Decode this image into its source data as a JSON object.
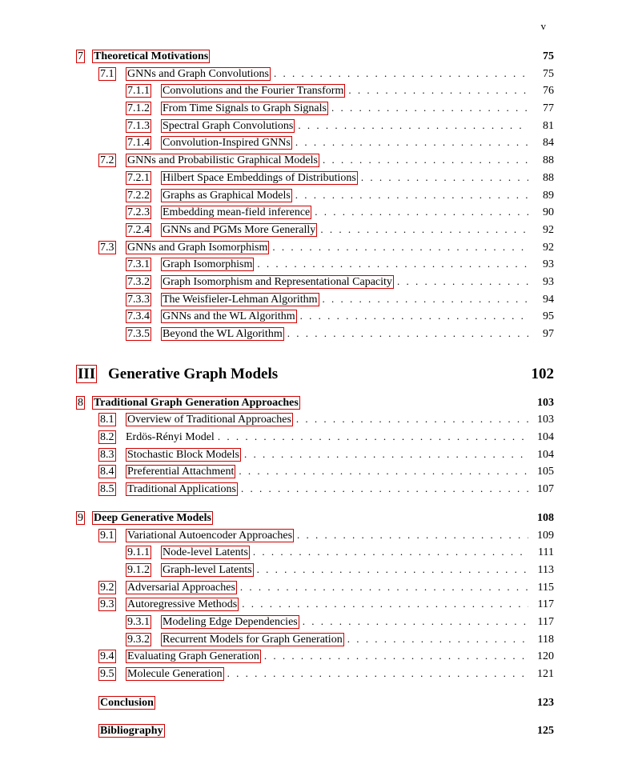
{
  "page_marker": "v",
  "link_box_color": "#d00000",
  "font": {
    "family": "Times New Roman",
    "base_size_pt": 10
  },
  "entries": [
    {
      "type": "chapter",
      "num": "7",
      "title": "Theoretical Motivations",
      "page": "75",
      "box_num": true,
      "box_title": true
    },
    {
      "type": "section",
      "num": "7.1",
      "title": "GNNs and Graph Convolutions",
      "page": "75",
      "box_num": true,
      "box_title": true
    },
    {
      "type": "subsec",
      "num": "7.1.1",
      "title": "Convolutions and the Fourier Transform",
      "page": "76",
      "box_num": true,
      "box_title": true
    },
    {
      "type": "subsec",
      "num": "7.1.2",
      "title": "From Time Signals to Graph Signals",
      "page": "77",
      "box_num": true,
      "box_title": true
    },
    {
      "type": "subsec",
      "num": "7.1.3",
      "title": "Spectral Graph Convolutions",
      "page": "81",
      "box_num": true,
      "box_title": true
    },
    {
      "type": "subsec",
      "num": "7.1.4",
      "title": "Convolution-Inspired GNNs",
      "page": "84",
      "box_num": true,
      "box_title": true
    },
    {
      "type": "section",
      "num": "7.2",
      "title": "GNNs and Probabilistic Graphical Models",
      "page": "88",
      "box_num": true,
      "box_title": true
    },
    {
      "type": "subsec",
      "num": "7.2.1",
      "title": "Hilbert Space Embeddings of Distributions",
      "page": "88",
      "box_num": true,
      "box_title": true
    },
    {
      "type": "subsec",
      "num": "7.2.2",
      "title": "Graphs as Graphical Models",
      "page": "89",
      "box_num": true,
      "box_title": true
    },
    {
      "type": "subsec",
      "num": "7.2.3",
      "title": "Embedding mean-field inference",
      "page": "90",
      "box_num": true,
      "box_title": true
    },
    {
      "type": "subsec",
      "num": "7.2.4",
      "title": "GNNs and PGMs More Generally",
      "page": "92",
      "box_num": true,
      "box_title": true
    },
    {
      "type": "section",
      "num": "7.3",
      "title": "GNNs and Graph Isomorphism",
      "page": "92",
      "box_num": true,
      "box_title": true
    },
    {
      "type": "subsec",
      "num": "7.3.1",
      "title": "Graph Isomorphism",
      "page": "93",
      "box_num": true,
      "box_title": true
    },
    {
      "type": "subsec",
      "num": "7.3.2",
      "title": "Graph Isomorphism and Representational Capacity",
      "page": "93",
      "box_num": true,
      "box_title": true
    },
    {
      "type": "subsec",
      "num": "7.3.3",
      "title": "The Weisfieler-Lehman Algorithm",
      "page": "94",
      "box_num": true,
      "box_title": true
    },
    {
      "type": "subsec",
      "num": "7.3.4",
      "title": "GNNs and the WL Algorithm",
      "page": "95",
      "box_num": true,
      "box_title": true
    },
    {
      "type": "subsec",
      "num": "7.3.5",
      "title": "Beyond the WL Algorithm",
      "page": "97",
      "box_num": true,
      "box_title": true
    },
    {
      "type": "part",
      "num": "III",
      "title": "Generative Graph Models",
      "page": "102",
      "box_num": true,
      "box_title": false
    },
    {
      "type": "chapter",
      "num": "8",
      "title": "Traditional Graph Generation Approaches",
      "page": "103",
      "box_num": true,
      "box_title": true
    },
    {
      "type": "section",
      "num": "8.1",
      "title": "Overview of Traditional Approaches",
      "page": "103",
      "box_num": true,
      "box_title": true
    },
    {
      "type": "section",
      "num": "8.2",
      "title": "Erdös-Rényi Model",
      "page": "104",
      "box_num": true,
      "box_title": false
    },
    {
      "type": "section",
      "num": "8.3",
      "title": "Stochastic Block Models",
      "page": "104",
      "box_num": true,
      "box_title": true
    },
    {
      "type": "section",
      "num": "8.4",
      "title": "Preferential Attachment",
      "page": "105",
      "box_num": true,
      "box_title": true
    },
    {
      "type": "section",
      "num": "8.5",
      "title": "Traditional Applications",
      "page": "107",
      "box_num": true,
      "box_title": true
    },
    {
      "type": "spacer"
    },
    {
      "type": "chapter",
      "num": "9",
      "title": "Deep Generative Models",
      "page": "108",
      "box_num": true,
      "box_title": true
    },
    {
      "type": "section",
      "num": "9.1",
      "title": "Variational Autoencoder Approaches",
      "page": "109",
      "box_num": true,
      "box_title": true
    },
    {
      "type": "subsec",
      "num": "9.1.1",
      "title": "Node-level Latents",
      "page": "111",
      "box_num": true,
      "box_title": true
    },
    {
      "type": "subsec",
      "num": "9.1.2",
      "title": "Graph-level Latents",
      "page": "113",
      "box_num": true,
      "box_title": true
    },
    {
      "type": "section",
      "num": "9.2",
      "title": "Adversarial Approaches",
      "page": "115",
      "box_num": true,
      "box_title": true
    },
    {
      "type": "section",
      "num": "9.3",
      "title": "Autoregressive Methods",
      "page": "117",
      "box_num": true,
      "box_title": true
    },
    {
      "type": "subsec",
      "num": "9.3.1",
      "title": "Modeling Edge Dependencies",
      "page": "117",
      "box_num": true,
      "box_title": true
    },
    {
      "type": "subsec",
      "num": "9.3.2",
      "title": "Recurrent Models for Graph Generation",
      "page": "118",
      "box_num": true,
      "box_title": true
    },
    {
      "type": "section",
      "num": "9.4",
      "title": "Evaluating Graph Generation",
      "page": "120",
      "box_num": true,
      "box_title": true
    },
    {
      "type": "section",
      "num": "9.5",
      "title": "Molecule Generation",
      "page": "121",
      "box_num": true,
      "box_title": true
    },
    {
      "type": "spacer"
    },
    {
      "type": "unnumbered",
      "title": "Conclusion",
      "page": "123"
    },
    {
      "type": "spacer"
    },
    {
      "type": "unnumbered",
      "title": "Bibliography",
      "page": "125"
    }
  ]
}
